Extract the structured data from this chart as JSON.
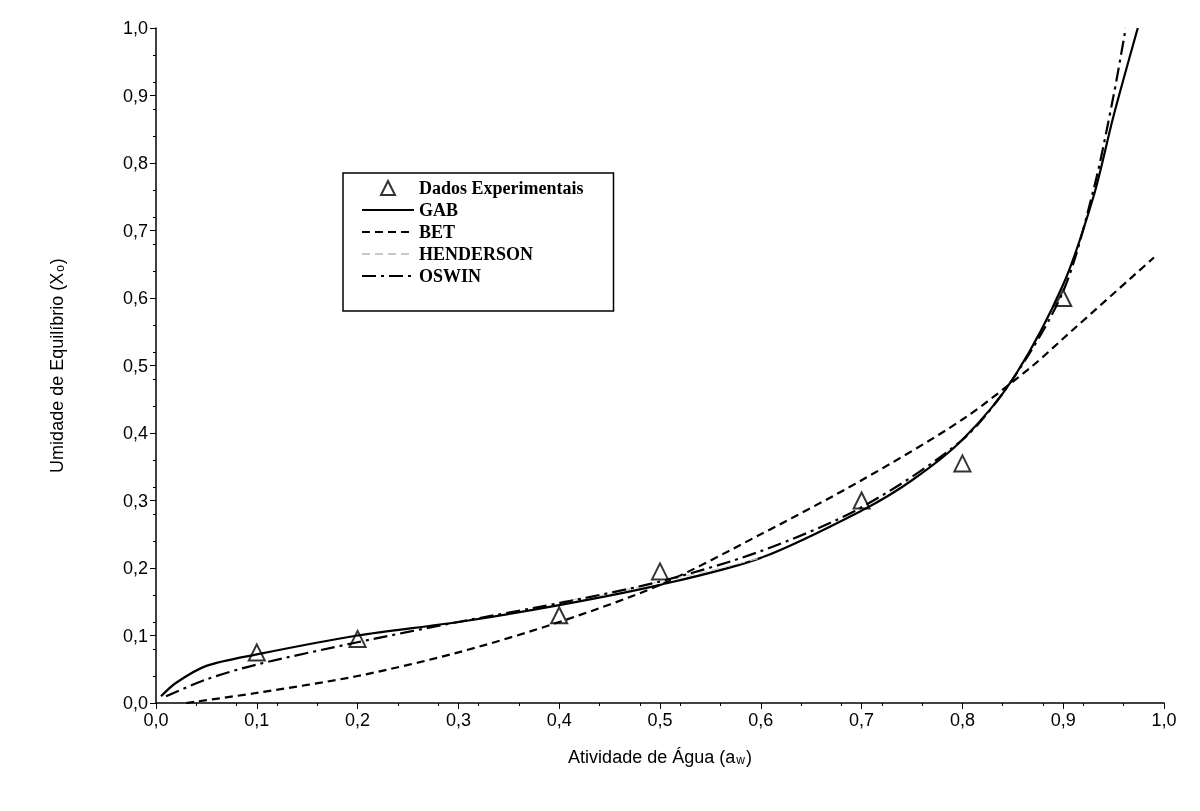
{
  "chart_data": {
    "type": "line",
    "xlabel": "Atividade de Água (a$_{w}$)",
    "ylabel": "Umidade de Equilíbrio (X$_{o}$)",
    "xlim": [
      0,
      1
    ],
    "ylim": [
      0,
      1
    ],
    "xticks": [
      {
        "value": 0,
        "label": "0,0"
      },
      {
        "value": 0.1,
        "label": "0,1"
      },
      {
        "value": 0.2,
        "label": "0,2"
      },
      {
        "value": 0.3,
        "label": "0,3"
      },
      {
        "value": 0.4,
        "label": "0,4"
      },
      {
        "value": 0.5,
        "label": "0,5"
      },
      {
        "value": 0.6,
        "label": "0,6"
      },
      {
        "value": 0.7,
        "label": "0,7"
      },
      {
        "value": 0.8,
        "label": "0,8"
      },
      {
        "value": 0.9,
        "label": "0,9"
      },
      {
        "value": 1,
        "label": "1,0"
      }
    ],
    "yticks": [
      {
        "value": 0,
        "label": "0,0"
      },
      {
        "value": 0.1,
        "label": "0,1"
      },
      {
        "value": 0.2,
        "label": "0,2"
      },
      {
        "value": 0.3,
        "label": "0,3"
      },
      {
        "value": 0.4,
        "label": "0,4"
      },
      {
        "value": 0.5,
        "label": "0,5"
      },
      {
        "value": 0.6,
        "label": "0,6"
      },
      {
        "value": 0.7,
        "label": "0,7"
      },
      {
        "value": 0.8,
        "label": "0,8"
      },
      {
        "value": 0.9,
        "label": "0,9"
      },
      {
        "value": 1,
        "label": "1,0"
      }
    ],
    "grid": false,
    "legend": "top left",
    "series": [
      {
        "name": "Dados Experimentais",
        "type": "scatter",
        "marker": "triangle",
        "color": "#000000",
        "x": [
          0.1,
          0.2,
          0.4,
          0.5,
          0.7,
          0.8,
          0.9
        ],
        "values": [
          0.075,
          0.095,
          0.13,
          0.195,
          0.3,
          0.355,
          0.6
        ]
      },
      {
        "name": "GAB",
        "marker": "none",
        "line_style": "solid",
        "color": "#000000",
        "x": [
          0.005,
          0.02,
          0.05,
          0.1,
          0.2,
          0.3,
          0.4,
          0.5,
          0.6,
          0.7,
          0.75,
          0.8,
          0.85,
          0.9,
          0.93,
          0.95,
          0.974
        ],
        "values": [
          0.01,
          0.03,
          0.055,
          0.072,
          0.1,
          0.12,
          0.145,
          0.175,
          0.215,
          0.285,
          0.33,
          0.39,
          0.48,
          0.62,
          0.75,
          0.87,
          1.0
        ]
      },
      {
        "name": "BET",
        "marker": "none",
        "line_style": "dashed",
        "color": "#000000",
        "x": [
          0.03,
          0.1,
          0.2,
          0.3,
          0.4,
          0.5,
          0.6,
          0.7,
          0.8,
          0.87,
          0.9,
          0.99
        ],
        "values": [
          0,
          0.015,
          0.04,
          0.075,
          0.12,
          0.175,
          0.25,
          0.33,
          0.42,
          0.5,
          0.54,
          0.66
        ]
      },
      {
        "name": "HENDERSON",
        "marker": "none",
        "line_style": "dashed",
        "color": "#c8c8c8",
        "x": [
          0.4,
          0.45,
          0.5,
          0.55,
          0.6
        ],
        "values": [
          0.15,
          0.162,
          0.18,
          0.196,
          0.215
        ]
      },
      {
        "name": "OSWIN",
        "marker": "none",
        "line_style": "dashdot",
        "color": "#000000",
        "x": [
          0.01,
          0.05,
          0.1,
          0.2,
          0.3,
          0.4,
          0.5,
          0.6,
          0.7,
          0.8,
          0.85,
          0.9,
          0.93,
          0.95,
          0.962
        ],
        "values": [
          0.01,
          0.035,
          0.057,
          0.09,
          0.12,
          0.148,
          0.18,
          0.225,
          0.29,
          0.39,
          0.48,
          0.61,
          0.76,
          0.9,
          1.0
        ]
      }
    ]
  }
}
